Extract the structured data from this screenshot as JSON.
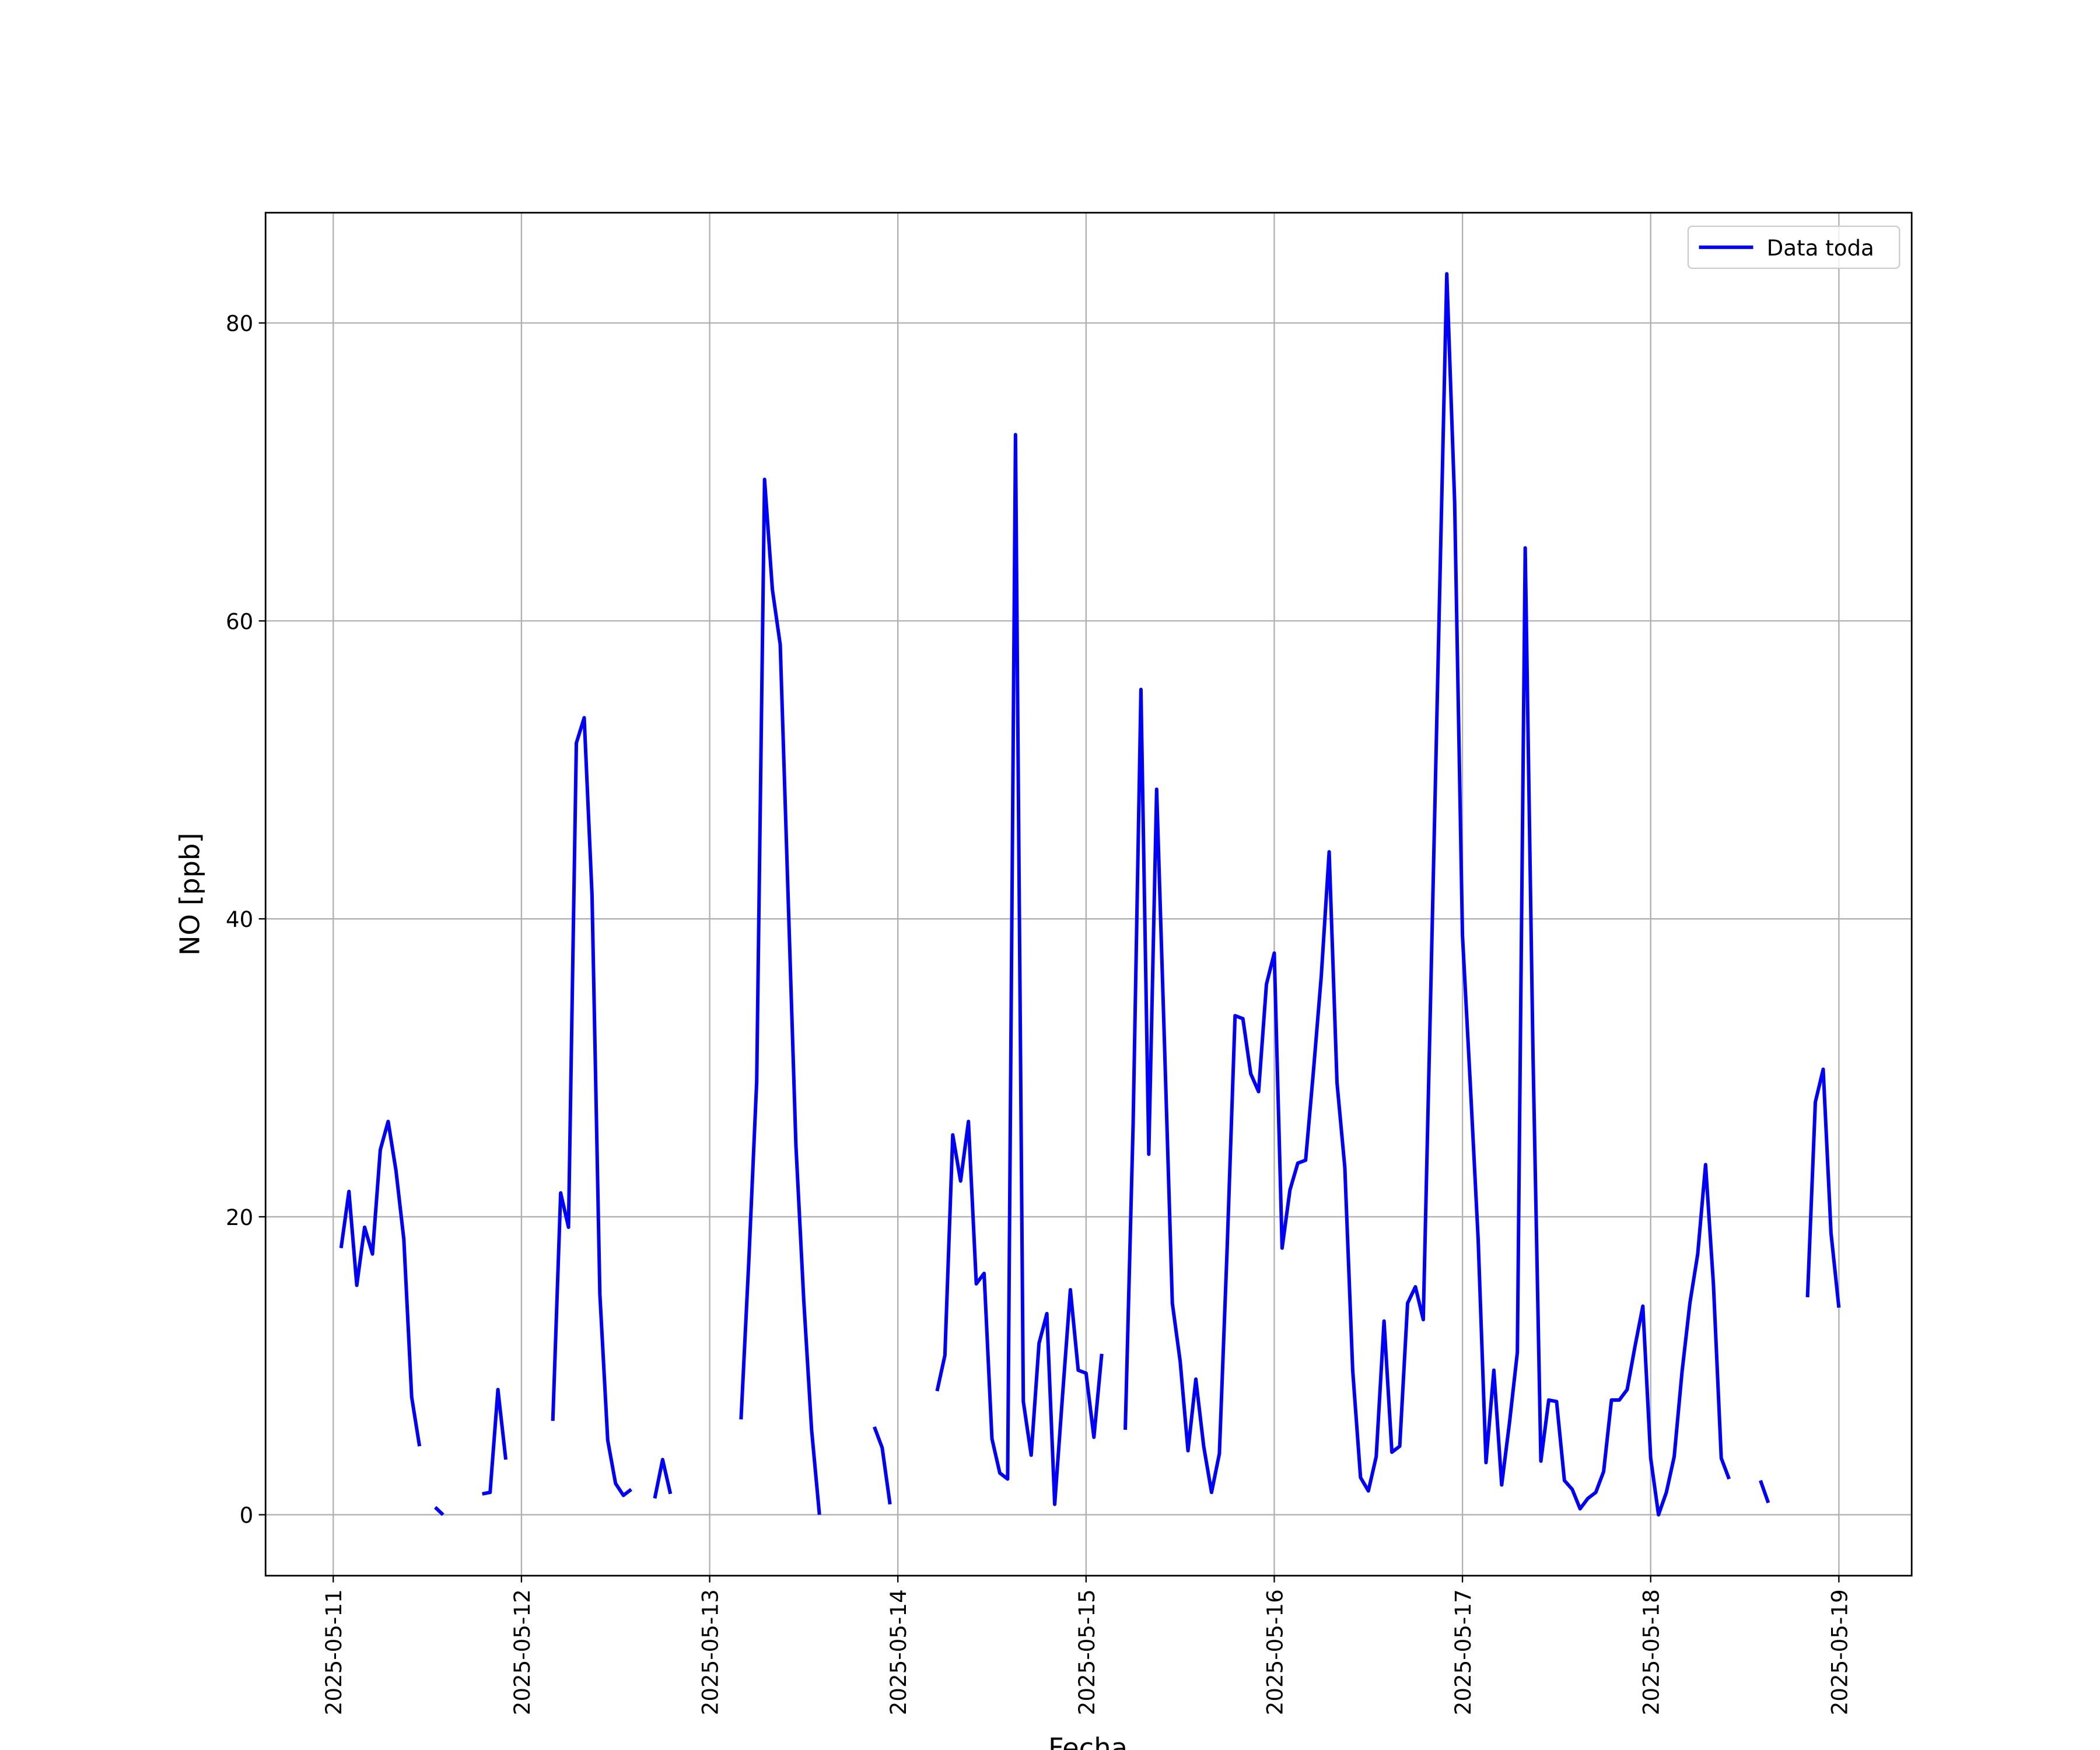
{
  "chart_data": {
    "type": "line",
    "xlabel": "Fecha",
    "ylabel": "NO [ppb]",
    "x": [
      "2025-05-11 01:00",
      "2025-05-11 02:00",
      "2025-05-11 03:00",
      "2025-05-11 04:00",
      "2025-05-11 05:00",
      "2025-05-11 06:00",
      "2025-05-11 07:00",
      "2025-05-11 08:00",
      "2025-05-11 09:00",
      "2025-05-11 10:00",
      "2025-05-11 11:00",
      "2025-05-11 12:00",
      "2025-05-11 13:00",
      "2025-05-11 14:00",
      "2025-05-11 15:00",
      "2025-05-11 19:00",
      "2025-05-11 20:00",
      "2025-05-11 21:00",
      "2025-05-11 22:00",
      "2025-05-11 23:00",
      "2025-05-12 04:00",
      "2025-05-12 05:00",
      "2025-05-12 06:00",
      "2025-05-12 07:00",
      "2025-05-12 08:00",
      "2025-05-12 09:00",
      "2025-05-12 10:00",
      "2025-05-12 11:00",
      "2025-05-12 12:00",
      "2025-05-12 13:00",
      "2025-05-12 14:00",
      "2025-05-12 15:00",
      "2025-05-12 17:00",
      "2025-05-12 18:00",
      "2025-05-12 19:00",
      "2025-05-12 20:00",
      "2025-05-13 04:00",
      "2025-05-13 05:00",
      "2025-05-13 06:00",
      "2025-05-13 07:00",
      "2025-05-13 08:00",
      "2025-05-13 09:00",
      "2025-05-13 10:00",
      "2025-05-13 11:00",
      "2025-05-13 12:00",
      "2025-05-13 13:00",
      "2025-05-13 14:00",
      "2025-05-13 15:00",
      "2025-05-13 21:00",
      "2025-05-13 22:00",
      "2025-05-13 23:00",
      "2025-05-14 00:00",
      "2025-05-14 05:00",
      "2025-05-14 06:00",
      "2025-05-14 07:00",
      "2025-05-14 08:00",
      "2025-05-14 09:00",
      "2025-05-14 10:00",
      "2025-05-14 11:00",
      "2025-05-14 12:00",
      "2025-05-14 13:00",
      "2025-05-14 14:00",
      "2025-05-14 15:00",
      "2025-05-14 16:00",
      "2025-05-14 17:00",
      "2025-05-14 18:00",
      "2025-05-14 19:00",
      "2025-05-14 20:00",
      "2025-05-14 21:00",
      "2025-05-14 22:00",
      "2025-05-14 23:00",
      "2025-05-15 00:00",
      "2025-05-15 01:00",
      "2025-05-15 02:00",
      "2025-05-15 03:00",
      "2025-05-15 05:00",
      "2025-05-15 06:00",
      "2025-05-15 07:00",
      "2025-05-15 08:00",
      "2025-05-15 09:00",
      "2025-05-15 10:00",
      "2025-05-15 11:00",
      "2025-05-15 12:00",
      "2025-05-15 13:00",
      "2025-05-15 14:00",
      "2025-05-15 15:00",
      "2025-05-15 16:00",
      "2025-05-15 17:00",
      "2025-05-15 18:00",
      "2025-05-15 19:00",
      "2025-05-15 20:00",
      "2025-05-15 21:00",
      "2025-05-15 22:00",
      "2025-05-15 23:00",
      "2025-05-16 00:00",
      "2025-05-16 01:00",
      "2025-05-16 02:00",
      "2025-05-16 03:00",
      "2025-05-16 04:00",
      "2025-05-16 05:00",
      "2025-05-16 06:00",
      "2025-05-16 07:00",
      "2025-05-16 08:00",
      "2025-05-16 09:00",
      "2025-05-16 10:00",
      "2025-05-16 11:00",
      "2025-05-16 12:00",
      "2025-05-16 13:00",
      "2025-05-16 14:00",
      "2025-05-16 15:00",
      "2025-05-16 16:00",
      "2025-05-16 17:00",
      "2025-05-16 18:00",
      "2025-05-16 19:00",
      "2025-05-16 20:00",
      "2025-05-16 21:00",
      "2025-05-16 22:00",
      "2025-05-16 23:00",
      "2025-05-17 00:00",
      "2025-05-17 01:00",
      "2025-05-17 02:00",
      "2025-05-17 03:00",
      "2025-05-17 04:00",
      "2025-05-17 05:00",
      "2025-05-17 06:00",
      "2025-05-17 07:00",
      "2025-05-17 08:00",
      "2025-05-17 09:00",
      "2025-05-17 10:00",
      "2025-05-17 11:00",
      "2025-05-17 12:00",
      "2025-05-17 13:00",
      "2025-05-17 14:00",
      "2025-05-17 15:00",
      "2025-05-17 16:00",
      "2025-05-17 17:00",
      "2025-05-17 18:00",
      "2025-05-17 19:00",
      "2025-05-17 20:00",
      "2025-05-17 21:00",
      "2025-05-17 22:00",
      "2025-05-17 23:00",
      "2025-05-18 00:00",
      "2025-05-18 01:00",
      "2025-05-18 02:00",
      "2025-05-18 03:00",
      "2025-05-18 04:00",
      "2025-05-18 05:00",
      "2025-05-18 06:00",
      "2025-05-18 07:00",
      "2025-05-18 08:00",
      "2025-05-18 09:00",
      "2025-05-18 10:00",
      "2025-05-18 11:00",
      "2025-05-18 14:00",
      "2025-05-18 15:00",
      "2025-05-18 16:00",
      "2025-05-18 20:00",
      "2025-05-18 21:00",
      "2025-05-18 22:00",
      "2025-05-18 23:00",
      "2025-05-19 00:00"
    ],
    "series": [
      {
        "name": "Data toda",
        "color": "#0000ff",
        "values": [
          17.9,
          21.7,
          15.4,
          19.3,
          17.5,
          24.5,
          26.4,
          23.1,
          18.5,
          7.9,
          4.6,
          null,
          0.5,
          0.0,
          null,
          1.4,
          1.5,
          8.4,
          3.7,
          null,
          6.3,
          21.6,
          19.3,
          51.8,
          53.5,
          41.6,
          14.8,
          5.0,
          2.1,
          1.3,
          1.7,
          null,
          1.1,
          3.7,
          1.4,
          null,
          6.4,
          17.1,
          29.1,
          69.5,
          62.1,
          58.4,
          41.6,
          24.8,
          14.4,
          5.7,
          0.0,
          null,
          5.9,
          4.5,
          0.7,
          null,
          8.3,
          10.7,
          25.5,
          22.4,
          26.4,
          15.5,
          16.2,
          5.1,
          2.8,
          2.4,
          72.5,
          7.6,
          4.0,
          11.5,
          13.5,
          0.7,
          8.0,
          15.1,
          9.7,
          9.5,
          5.2,
          10.8,
          null,
          5.7,
          26.2,
          55.4,
          24.2,
          48.7,
          31.6,
          14.2,
          10.3,
          4.3,
          9.1,
          4.6,
          1.5,
          4.1,
          18.0,
          33.5,
          33.3,
          29.6,
          28.4,
          35.6,
          37.7,
          17.9,
          21.8,
          23.6,
          23.8,
          29.8,
          36.2,
          44.5,
          29.0,
          23.3,
          9.7,
          2.5,
          1.6,
          3.9,
          13.0,
          4.2,
          4.6,
          14.2,
          15.3,
          13.1,
          36.2,
          59.8,
          83.3,
          68.0,
          38.9,
          28.9,
          18.5,
          3.5,
          9.7,
          2.0,
          6.2,
          10.9,
          64.9,
          30.7,
          3.6,
          7.7,
          7.6,
          2.3,
          1.7,
          0.4,
          1.1,
          1.5,
          2.9,
          7.7,
          7.7,
          8.4,
          11.3,
          14.0,
          3.8,
          0.0,
          1.5,
          3.9,
          9.6,
          14.2,
          17.5,
          23.5,
          15.5,
          3.8,
          2.4,
          null,
          2.3,
          0.8,
          null,
          14.6,
          27.7,
          29.9,
          18.9,
          13.9
        ]
      }
    ],
    "xlim": [
      "2025-05-10 15:22",
      "2025-05-19 09:17"
    ],
    "xticks": [
      "2025-05-11",
      "2025-05-12",
      "2025-05-13",
      "2025-05-14",
      "2025-05-15",
      "2025-05-16",
      "2025-05-17",
      "2025-05-18",
      "2025-05-19"
    ],
    "ylim": [
      -4.09,
      87.4
    ],
    "yticks": [
      0,
      20,
      40,
      60,
      80
    ],
    "grid": true,
    "legend": "upper right"
  }
}
